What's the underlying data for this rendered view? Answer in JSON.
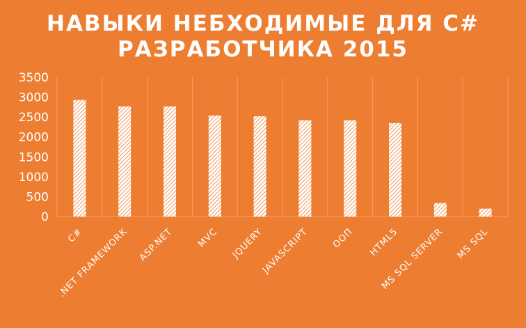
{
  "chart_data": {
    "type": "bar",
    "title_lines": [
      "НАВЫКИ НЕБХОДИМЫЕ ДЛЯ С#",
      "РАЗРАБОТЧИКА 2015"
    ],
    "categories": [
      "C#",
      ".NET FRAMEWORK",
      "ASP.NET",
      "MVC",
      "JQUERY",
      "JAVASCRIPT",
      "ООП",
      "HTML5",
      "MS SQL SERVER",
      "MS SQL"
    ],
    "values": [
      2930,
      2770,
      2770,
      2540,
      2520,
      2420,
      2420,
      2350,
      340,
      200
    ],
    "yticks": [
      "0",
      "500",
      "1000",
      "1500",
      "2000",
      "2500",
      "3000",
      "3500"
    ],
    "ylim": [
      0,
      3500
    ],
    "grid": "vertical category dividers",
    "legend": "none",
    "colors": {
      "background": "#ED7D31",
      "bar_fill": "#ffffff",
      "bar_pattern": "#ED7D31",
      "gridline": "#F2A06B",
      "text": "#ffffff"
    }
  }
}
